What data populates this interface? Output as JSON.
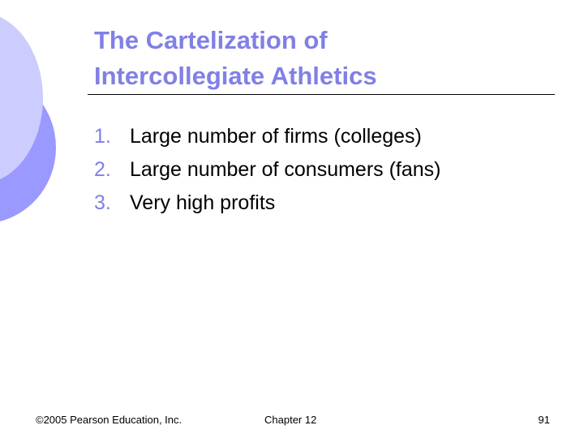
{
  "colors": {
    "accent": "#8080e6",
    "circle_light": "#ccccff",
    "circle_dark": "#9999ff"
  },
  "title": {
    "line1": "The Cartelization of",
    "line2": "Intercollegiate Athletics"
  },
  "items": [
    {
      "num": "1.",
      "text": "Large number of firms (colleges)"
    },
    {
      "num": "2.",
      "text": "Large number of consumers (fans)"
    },
    {
      "num": "3.",
      "text": "Very high profits"
    }
  ],
  "footer": {
    "copyright": "©2005 Pearson Education, Inc.",
    "chapter": "Chapter 12",
    "page": "91"
  }
}
